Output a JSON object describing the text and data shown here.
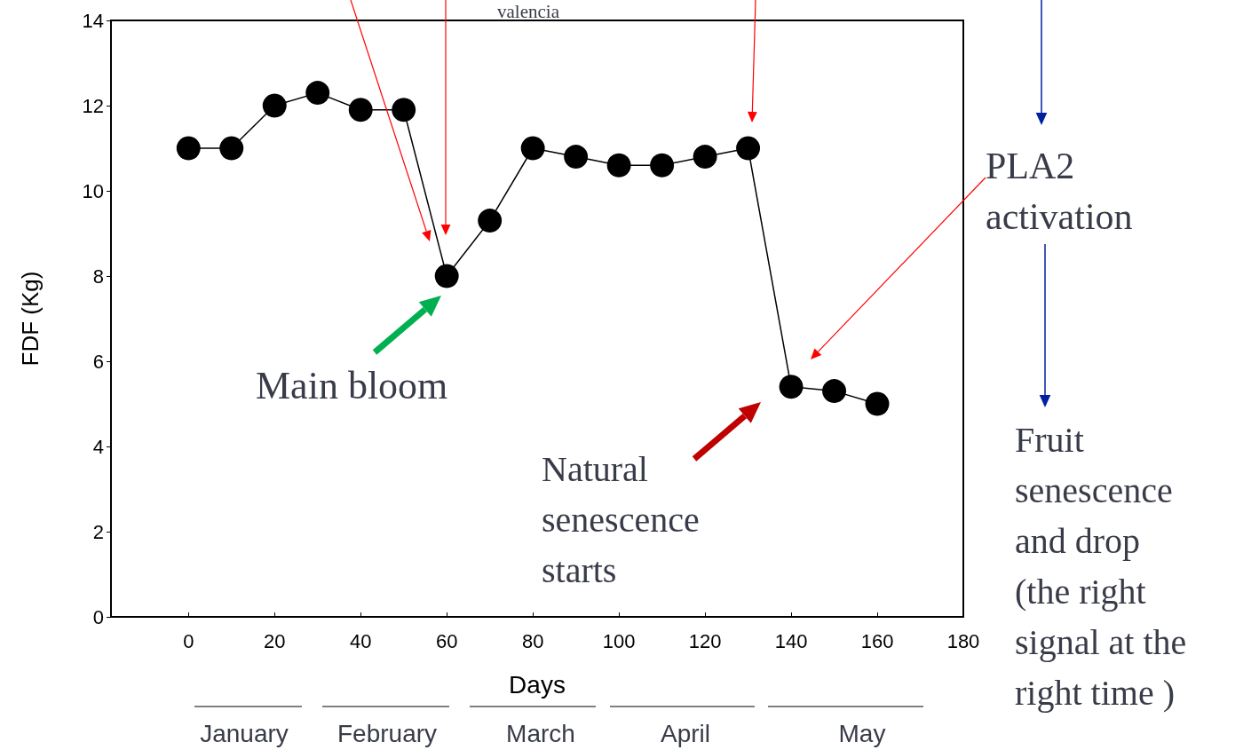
{
  "chart_data": {
    "type": "line",
    "xlabel": "Days",
    "ylabel": "FDF (Kg)",
    "x": [
      0,
      10,
      20,
      30,
      40,
      50,
      60,
      70,
      80,
      90,
      100,
      110,
      120,
      130,
      140,
      150,
      160
    ],
    "series": [
      {
        "color": "#000000",
        "values": [
          11,
          11,
          12,
          12.3,
          11.9,
          11.9,
          8,
          9.3,
          11,
          10.8,
          10.6,
          10.6,
          10.8,
          11,
          5.4,
          5.3,
          5.0
        ]
      }
    ],
    "xlim": [
      -18,
      180
    ],
    "xticks": [
      0,
      20,
      40,
      60,
      80,
      100,
      120,
      140,
      160,
      180
    ],
    "ylim": [
      0,
      14
    ],
    "yticks": [
      0,
      2,
      4,
      6,
      8,
      10,
      12,
      14
    ],
    "marker": "circle",
    "line_style": "solid",
    "annotations": [
      "valencia",
      "Main bloom",
      "Natural\nsenescence\nstarts",
      "PLA2\nactivation",
      "Fruit\nsenescence\nand drop\n(the right\nsignal at the\nright time )",
      "January",
      "February",
      "March",
      "April",
      "May"
    ]
  }
}
